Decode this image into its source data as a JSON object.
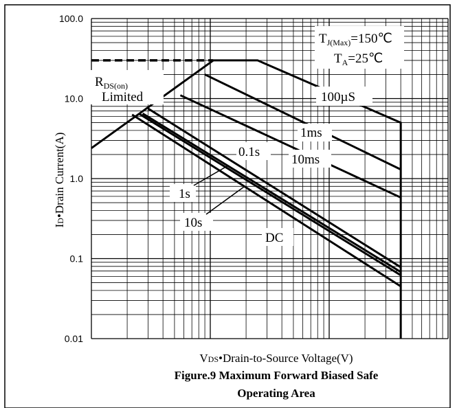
{
  "chart_data": {
    "type": "line",
    "caption_line1": "Figure.9 Maximum Forward Biased Safe",
    "caption_line2": "Operating Area",
    "ylabel_prefix": "I",
    "ylabel_sub": "D",
    "ylabel_rest": "•Drain Current(A)",
    "xlabel_prefix": "V",
    "xlabel_sub": "DS",
    "xlabel_rest": "•Drain-to-Source Voltage(V)",
    "yscale": "log",
    "ylim": [
      0.01,
      100
    ],
    "xscale": "log",
    "xlim": [
      0.1,
      100
    ],
    "y_tick_labels": [
      "100.0",
      "10.0",
      "1.0",
      "0.1",
      "0.01"
    ],
    "y_tick_values": [
      100,
      10,
      1,
      0.1,
      0.01
    ],
    "grid": true,
    "conditions": {
      "tj_main": "T",
      "tj_sub": "J(Max)",
      "tj_value": "=150℃",
      "ta_main": "T",
      "ta_sub": "A",
      "ta_value": "=25℃"
    },
    "rds_label": {
      "main": "R",
      "sub": "DS(on)",
      "line2": "Limited"
    },
    "current_limit": 30,
    "voltage_limit": 40,
    "rds_on_limit_line": {
      "x": [
        0.1,
        1.06
      ],
      "y": [
        2.4,
        30
      ]
    },
    "series": [
      {
        "name": "100µS",
        "x": [
          1.06,
          2.5,
          40,
          40
        ],
        "y": [
          30,
          30,
          5,
          0.0
        ]
      },
      {
        "name": "1ms",
        "x": [
          0.9,
          40
        ],
        "y": [
          20,
          1.3
        ]
      },
      {
        "name": "10ms",
        "x": [
          0.56,
          40
        ],
        "y": [
          11,
          0.58
        ]
      },
      {
        "name": "0.1s",
        "x": [
          0.3,
          40
        ],
        "y": [
          7.5,
          0.078
        ]
      },
      {
        "name": "1s",
        "x": [
          0.27,
          40
        ],
        "y": [
          6.5,
          0.068
        ]
      },
      {
        "name": "10s",
        "x": [
          0.25,
          40
        ],
        "y": [
          6.5,
          0.062
        ]
      },
      {
        "name": "DC",
        "x": [
          0.22,
          40
        ],
        "y": [
          6.3,
          0.045
        ]
      }
    ],
    "annotations": [
      "100µS",
      "1ms",
      "10ms",
      "0.1s",
      "1s",
      "10s",
      "DC"
    ]
  }
}
